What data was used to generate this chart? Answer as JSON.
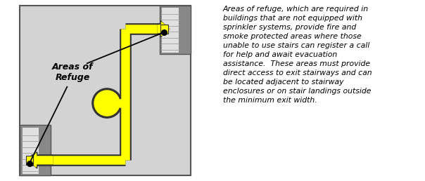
{
  "fig_width": 6.04,
  "fig_height": 2.58,
  "dpi": 100,
  "bg_color": "#ffffff",
  "floor_bg": "#d3d3d3",
  "stair_dark": "#888888",
  "stair_mid": "#aaaaaa",
  "stair_light": "#e8e8e8",
  "yellow": "#ffff00",
  "outline": "#333333",
  "text_color": "#000000",
  "caption_text": "Areas of refuge, which are required in\nbuildings that are not equipped with\nsprinkler systems, provide fire and\nsmoke protected areas where those\nunable to use stairs can register a call\nfor help and await evacuation\nassistance.  These areas must provide\ndirect access to exit stairways and can\nbe located adjacent to stairway\nenclosures or on stair landings outside\nthe minimum exit width.",
  "label_text": "Areas of\nRefuge"
}
